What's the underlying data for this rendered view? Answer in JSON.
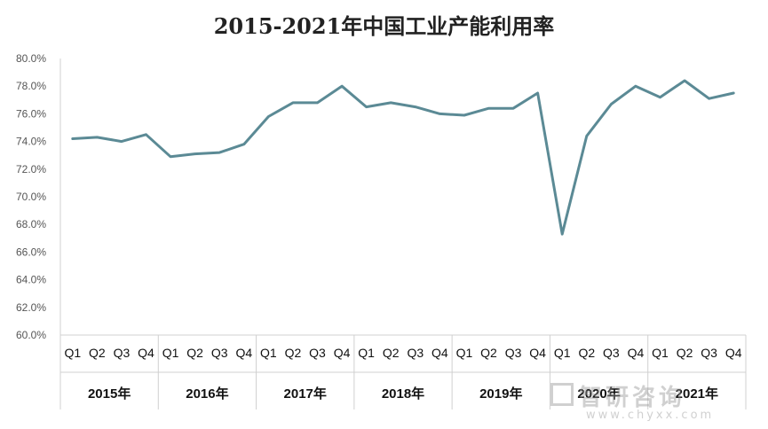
{
  "chart_data": {
    "type": "line",
    "title": "2015-2021年中国工业产能利用率",
    "ylim": [
      60,
      80
    ],
    "yticks": [
      "60.0%",
      "62.0%",
      "64.0%",
      "66.0%",
      "68.0%",
      "70.0%",
      "72.0%",
      "74.0%",
      "76.0%",
      "78.0%",
      "80.0%"
    ],
    "x_quarters": [
      "Q1",
      "Q2",
      "Q3",
      "Q4",
      "Q1",
      "Q2",
      "Q3",
      "Q4",
      "Q1",
      "Q2",
      "Q3",
      "Q4",
      "Q1",
      "Q2",
      "Q3",
      "Q4",
      "Q1",
      "Q2",
      "Q3",
      "Q4",
      "Q1",
      "Q2",
      "Q3",
      "Q4",
      "Q1",
      "Q2",
      "Q3",
      "Q4"
    ],
    "x_years": [
      "2015年",
      "2016年",
      "2017年",
      "2018年",
      "2019年",
      "2020年",
      "2021年"
    ],
    "series": [
      {
        "values": [
          74.2,
          74.3,
          74.0,
          74.5,
          72.9,
          73.1,
          73.2,
          73.8,
          75.8,
          76.8,
          76.8,
          78.0,
          76.5,
          76.8,
          76.5,
          76.0,
          75.9,
          76.4,
          76.4,
          77.5,
          67.3,
          74.4,
          76.7,
          78.0,
          77.2,
          78.4,
          77.1,
          77.5
        ]
      }
    ],
    "line_color": "#5b8a95",
    "grid": false
  },
  "watermark": {
    "text": "智研咨询",
    "url": "www.chyxx.com"
  }
}
